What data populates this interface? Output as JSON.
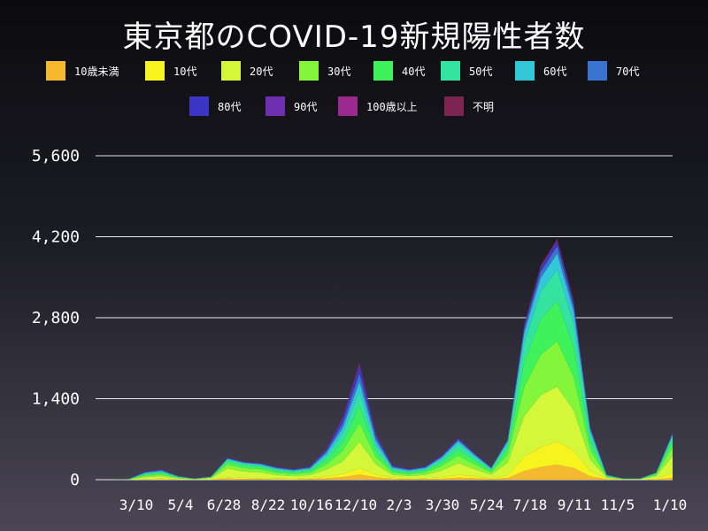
{
  "chart_data": {
    "type": "area",
    "title": "東京都のCOVID-19新規陽性者数",
    "xlabel": "",
    "ylabel": "",
    "ylim": [
      0,
      6000
    ],
    "yticks": [
      0,
      1400,
      2800,
      4200,
      5600
    ],
    "ytick_labels": [
      "0",
      "1,400",
      "2,800",
      "4,200",
      "5,600"
    ],
    "x_tick_labels": [
      "3/10",
      "5/4",
      "6/28",
      "8/22",
      "10/16",
      "12/10",
      "2/3",
      "3/30",
      "5/24",
      "7/18",
      "9/11",
      "11/5",
      "1/10"
    ],
    "grid": "horizontal",
    "legend_position": "top",
    "x": [
      "1/24",
      "2/18",
      "3/10",
      "4/5",
      "4/16",
      "5/4",
      "5/29",
      "6/28",
      "7/20",
      "8/5",
      "8/22",
      "9/15",
      "10/16",
      "11/15",
      "12/10",
      "12/31",
      "1/7",
      "1/15",
      "2/3",
      "3/1",
      "3/30",
      "4/28",
      "5/10",
      "5/24",
      "6/20",
      "7/18",
      "8/1",
      "8/13",
      "8/20",
      "8/28",
      "9/11",
      "10/1",
      "11/5",
      "12/20",
      "1/4",
      "1/10"
    ],
    "series": [
      {
        "name": "10歳未満",
        "values": [
          0,
          0,
          1,
          5,
          8,
          3,
          1,
          1,
          20,
          12,
          10,
          8,
          6,
          10,
          25,
          45,
          90,
          40,
          15,
          10,
          12,
          15,
          35,
          25,
          12,
          30,
          150,
          220,
          260,
          200,
          60,
          8,
          2,
          2,
          6,
          30
        ]
      },
      {
        "name": "10代",
        "values": [
          0,
          0,
          1,
          8,
          10,
          4,
          2,
          3,
          25,
          18,
          15,
          12,
          9,
          14,
          30,
          55,
          110,
          45,
          18,
          12,
          15,
          25,
          50,
          35,
          15,
          45,
          250,
          340,
          400,
          300,
          90,
          10,
          2,
          2,
          10,
          80
        ]
      },
      {
        "name": "20代",
        "values": [
          0,
          0,
          2,
          30,
          40,
          15,
          5,
          20,
          150,
          110,
          100,
          60,
          45,
          55,
          120,
          220,
          450,
          180,
          50,
          40,
          55,
          120,
          200,
          120,
          60,
          220,
          700,
          900,
          950,
          700,
          200,
          20,
          5,
          5,
          40,
          300
        ]
      },
      {
        "name": "30代",
        "values": [
          0,
          0,
          2,
          25,
          30,
          12,
          4,
          12,
          70,
          60,
          55,
          40,
          35,
          40,
          90,
          180,
          330,
          130,
          40,
          30,
          40,
          80,
          130,
          85,
          40,
          140,
          500,
          700,
          780,
          580,
          170,
          14,
          4,
          4,
          25,
          160
        ]
      },
      {
        "name": "40代",
        "values": [
          0,
          0,
          2,
          22,
          28,
          10,
          3,
          8,
          50,
          45,
          42,
          34,
          30,
          35,
          80,
          160,
          290,
          110,
          35,
          28,
          34,
          65,
          110,
          70,
          32,
          110,
          430,
          620,
          700,
          520,
          150,
          12,
          3,
          3,
          18,
          110
        ]
      },
      {
        "name": "50代",
        "values": [
          0,
          0,
          2,
          18,
          22,
          8,
          2,
          5,
          30,
          30,
          28,
          26,
          22,
          26,
          65,
          135,
          240,
          95,
          30,
          24,
          28,
          50,
          90,
          55,
          26,
          80,
          330,
          470,
          540,
          400,
          120,
          10,
          2,
          2,
          12,
          70
        ]
      },
      {
        "name": "60代",
        "values": [
          0,
          0,
          1,
          12,
          14,
          5,
          1,
          3,
          15,
          15,
          16,
          16,
          14,
          18,
          45,
          100,
          180,
          70,
          22,
          16,
          18,
          28,
          50,
          30,
          14,
          40,
          170,
          240,
          280,
          210,
          65,
          6,
          1,
          1,
          7,
          30
        ]
      },
      {
        "name": "70代",
        "values": [
          0,
          0,
          1,
          10,
          12,
          4,
          1,
          2,
          10,
          10,
          11,
          12,
          10,
          14,
          35,
          85,
          150,
          60,
          20,
          12,
          14,
          18,
          30,
          18,
          8,
          20,
          80,
          110,
          130,
          100,
          35,
          4,
          1,
          1,
          5,
          20
        ]
      },
      {
        "name": "80代",
        "values": [
          0,
          0,
          1,
          7,
          9,
          3,
          1,
          1,
          6,
          6,
          7,
          8,
          7,
          10,
          25,
          65,
          110,
          45,
          15,
          9,
          10,
          12,
          18,
          10,
          5,
          10,
          45,
          60,
          70,
          55,
          20,
          3,
          1,
          1,
          3,
          12
        ]
      },
      {
        "name": "90代",
        "values": [
          0,
          0,
          0,
          3,
          4,
          1,
          0,
          0,
          2,
          2,
          3,
          4,
          3,
          5,
          12,
          30,
          50,
          20,
          7,
          4,
          5,
          5,
          8,
          4,
          2,
          4,
          15,
          20,
          25,
          20,
          8,
          1,
          0,
          0,
          1,
          5
        ]
      },
      {
        "name": "100歳以上",
        "values": [
          0,
          0,
          0,
          0,
          0,
          0,
          0,
          0,
          0,
          0,
          0,
          0,
          0,
          0,
          1,
          2,
          3,
          1,
          0,
          0,
          0,
          0,
          1,
          0,
          0,
          0,
          1,
          1,
          2,
          1,
          1,
          0,
          0,
          0,
          0,
          0
        ]
      },
      {
        "name": "不明",
        "values": [
          0,
          0,
          0,
          2,
          3,
          1,
          0,
          0,
          2,
          2,
          2,
          2,
          2,
          3,
          5,
          10,
          20,
          8,
          3,
          2,
          2,
          3,
          5,
          3,
          2,
          5,
          20,
          25,
          30,
          20,
          8,
          1,
          0,
          0,
          1,
          3
        ]
      }
    ],
    "colors": [
      "#f4b92e",
      "#f7f31f",
      "#d4f73a",
      "#83f53b",
      "#3ff25b",
      "#35e3a0",
      "#33c8d8",
      "#3a74d0",
      "#3a35c2",
      "#6e2fb0",
      "#9c2a8e",
      "#7d2550"
    ]
  }
}
